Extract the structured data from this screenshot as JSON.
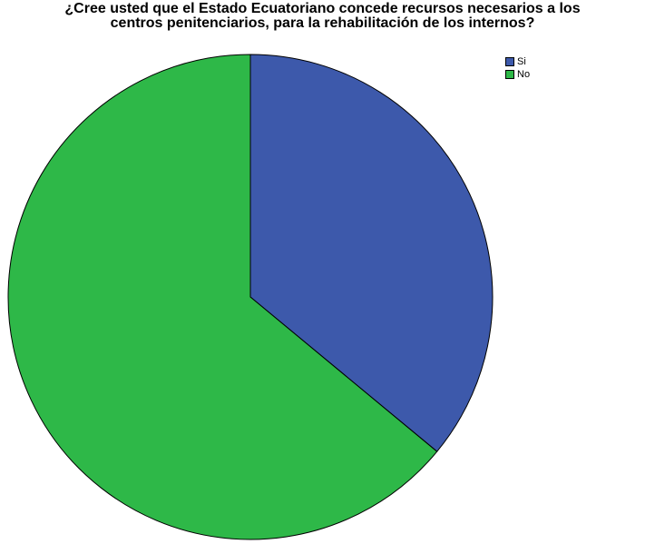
{
  "chart_data": {
    "type": "pie",
    "title_lines": [
      "¿Cree usted que el Estado Ecuatoriano concede recursos necesarios a los",
      "centros penitenciarios, para la rehabilitación de los internos?"
    ],
    "categories": [
      "Si",
      "No"
    ],
    "values": [
      36,
      64
    ],
    "colors": [
      "#3d59ab",
      "#2eb848"
    ],
    "legend_position": "top-right",
    "start_angle": "12 o'clock",
    "direction": "clockwise"
  }
}
